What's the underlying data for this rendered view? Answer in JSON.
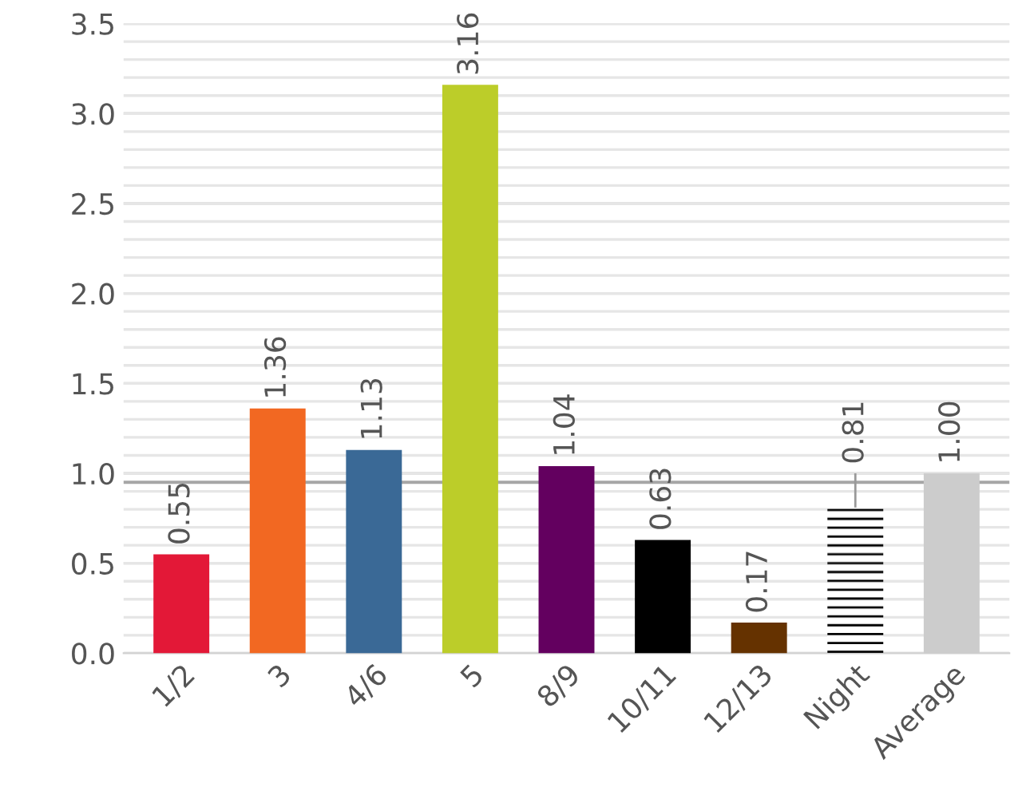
{
  "chart_data": {
    "type": "bar",
    "categories": [
      "1/2",
      "3",
      "4/6",
      "5",
      "8/9",
      "10/11",
      "12/13",
      "Night",
      "Average"
    ],
    "values": [
      0.55,
      1.36,
      1.13,
      3.16,
      1.04,
      0.63,
      0.17,
      0.81,
      1.0
    ],
    "value_labels": [
      "0.55",
      "1.36",
      "1.13",
      "3.16",
      "1.04",
      "0.63",
      "0.17",
      "0.81",
      "1.00"
    ],
    "colors": [
      "#e31837",
      "#f26822",
      "#3a6996",
      "#bccd29",
      "#63005f",
      "#000000",
      "#653200",
      "#000000",
      "#cccccc"
    ],
    "errors": [
      null,
      null,
      null,
      null,
      null,
      null,
      null,
      [
        0.81,
        1.0
      ],
      null
    ],
    "ylim": [
      0,
      3.5
    ],
    "yticks": [
      {
        "value": 0,
        "label": "0.0"
      },
      {
        "value": 0.1,
        "label": null
      },
      {
        "value": 0.2,
        "label": null
      },
      {
        "value": 0.3,
        "label": null
      },
      {
        "value": 0.4,
        "label": null
      },
      0.5,
      {
        "value": 0.6,
        "label": null
      },
      {
        "value": 0.7,
        "label": null
      },
      {
        "value": 0.8,
        "label": null
      },
      {
        "value": 0.9,
        "label": null
      },
      {
        "value": 1.0,
        "label": "1.0"
      },
      {
        "value": 1.1,
        "label": null
      },
      {
        "value": 1.2,
        "label": null
      },
      {
        "value": 1.3,
        "label": null
      },
      {
        "value": 1.4,
        "label": null
      },
      1.5,
      {
        "value": 1.6,
        "label": null
      },
      {
        "value": 1.7,
        "label": null
      },
      {
        "value": 1.8,
        "label": null
      },
      {
        "value": 1.9,
        "label": null
      },
      {
        "value": 2.0,
        "label": "2.0"
      },
      {
        "value": 2.1,
        "label": null
      },
      {
        "value": 2.2,
        "label": null
      },
      {
        "value": 2.3,
        "label": null
      },
      {
        "value": 2.4,
        "label": null
      },
      2.5,
      {
        "value": 2.6,
        "label": null
      },
      {
        "value": 2.7,
        "label": null
      },
      {
        "value": 2.8,
        "label": null
      },
      {
        "value": 2.9,
        "label": null
      },
      {
        "value": 3.0,
        "label": "3.0"
      },
      {
        "value": 3.1,
        "label": null
      },
      {
        "value": 3.2,
        "label": null
      },
      {
        "value": 3.3,
        "label": null
      },
      {
        "value": 3.4,
        "label": null
      },
      3.5
    ],
    "ref_lines": [
      {
        "axis": "y",
        "value": 0.95,
        "color": "#a6a6a6"
      }
    ],
    "grid": "y"
  }
}
